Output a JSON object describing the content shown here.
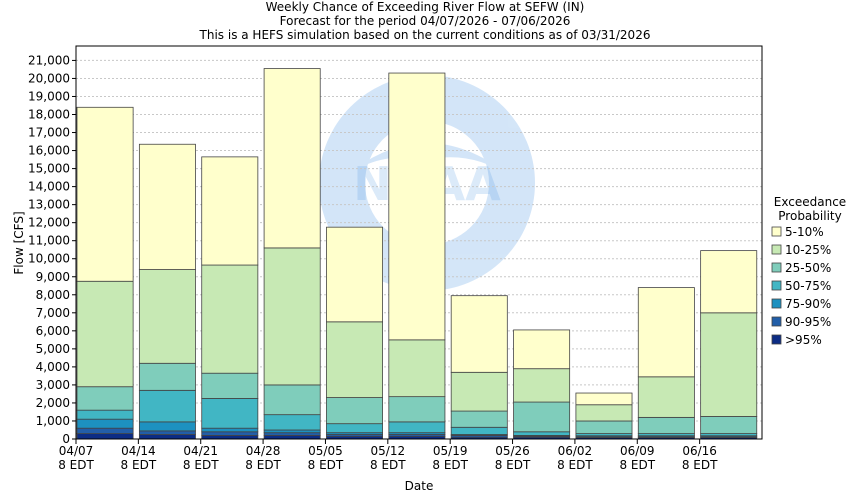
{
  "chart_data": {
    "type": "bar",
    "stacked": true,
    "title_lines": [
      "Weekly Chance of Exceeding River Flow at SEFW (IN)",
      "Forecast for the period 04/07/2026 - 07/06/2026",
      "This is a HEFS simulation based on the current conditions as of 03/31/2026"
    ],
    "xlabel": "Date",
    "ylabel": "Flow [CFS]",
    "ylim": [
      0,
      21800
    ],
    "yticks": [
      0,
      1000,
      2000,
      3000,
      4000,
      5000,
      6000,
      7000,
      8000,
      9000,
      10000,
      11000,
      12000,
      13000,
      14000,
      15000,
      16000,
      17000,
      18000,
      19000,
      20000,
      21000
    ],
    "ytick_labels": [
      "0",
      "1,000",
      "2,000",
      "3,000",
      "4,000",
      "5,000",
      "6,000",
      "7,000",
      "8,000",
      "9,000",
      "10,000",
      "11,000",
      "12,000",
      "13,000",
      "14,000",
      "15,000",
      "16,000",
      "17,000",
      "18,000",
      "19,000",
      "20,000",
      "21,000"
    ],
    "xtick_labels": [
      {
        "date": "04/07",
        "sub": "8 EDT"
      },
      {
        "date": "04/14",
        "sub": "8 EDT"
      },
      {
        "date": "04/21",
        "sub": "8 EDT"
      },
      {
        "date": "04/28",
        "sub": "8 EDT"
      },
      {
        "date": "05/05",
        "sub": "8 EDT"
      },
      {
        "date": "05/12",
        "sub": "8 EDT"
      },
      {
        "date": "05/19",
        "sub": "8 EDT"
      },
      {
        "date": "05/26",
        "sub": "8 EDT"
      },
      {
        "date": "06/02",
        "sub": "8 EDT"
      },
      {
        "date": "06/09",
        "sub": "8 EDT"
      },
      {
        "date": "06/16",
        "sub": "8 EDT"
      }
    ],
    "grid": true,
    "legend": {
      "title_lines": [
        "Exceedance",
        "Probability"
      ],
      "position": "right",
      "entries": [
        {
          "label": "5-10%",
          "color": "#ffffcc"
        },
        {
          "label": "10-25%",
          "color": "#c7e9b4"
        },
        {
          "label": "25-50%",
          "color": "#7fcdbb"
        },
        {
          "label": "50-75%",
          "color": "#41b6c4"
        },
        {
          "label": "75-90%",
          "color": "#1d91c0"
        },
        {
          "label": "90-95%",
          "color": "#225ea8"
        },
        {
          "label": ">95%",
          "color": "#0c2c84"
        }
      ]
    },
    "watermark": "NOAA",
    "series_stack_order": [
      ">95%",
      "90-95%",
      "75-90%",
      "50-75%",
      "25-50%",
      "10-25%",
      "5-10%"
    ],
    "bars": [
      {
        "week": "04/07",
        "bounds": [
          300,
          600,
          1100,
          1600,
          2900,
          8750,
          18400
        ]
      },
      {
        "week": "04/14",
        "bounds": [
          250,
          450,
          950,
          2700,
          4200,
          9400,
          16350
        ]
      },
      {
        "week": "04/21",
        "bounds": [
          200,
          400,
          600,
          2250,
          3650,
          9650,
          15650
        ]
      },
      {
        "week": "04/28",
        "bounds": [
          200,
          350,
          500,
          1350,
          3000,
          10600,
          20550
        ]
      },
      {
        "week": "05/05",
        "bounds": [
          150,
          250,
          350,
          850,
          2300,
          6500,
          11750
        ]
      },
      {
        "week": "05/12",
        "bounds": [
          150,
          250,
          350,
          950,
          2350,
          5500,
          20300
        ]
      },
      {
        "week": "05/19",
        "bounds": [
          100,
          200,
          250,
          650,
          1550,
          3700,
          7950
        ]
      },
      {
        "week": "05/26",
        "bounds": [
          100,
          150,
          200,
          400,
          2050,
          3900,
          6050
        ]
      },
      {
        "week": "06/02",
        "bounds": [
          80,
          120,
          180,
          300,
          1000,
          1900,
          2550
        ]
      },
      {
        "week": "06/09",
        "bounds": [
          80,
          120,
          180,
          300,
          1200,
          3450,
          8400
        ]
      },
      {
        "week": "06/16",
        "bounds": [
          80,
          120,
          180,
          300,
          1250,
          7000,
          10450
        ]
      }
    ]
  }
}
